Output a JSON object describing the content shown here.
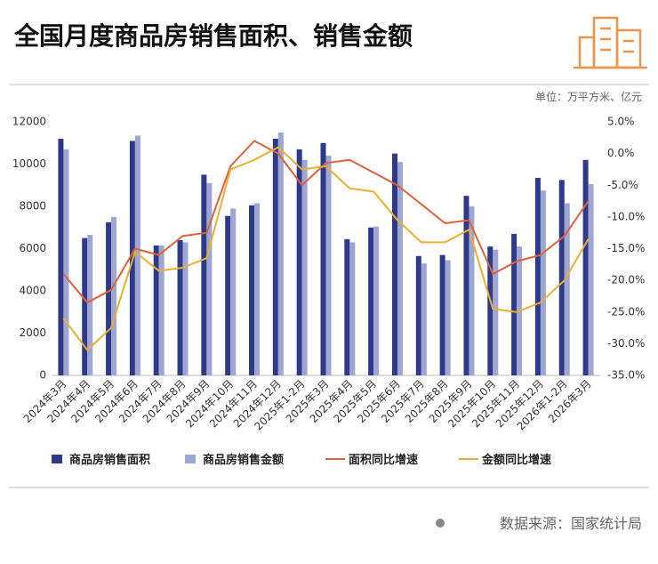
{
  "chart_data": {
    "type": "bar-line",
    "title": "全国月度商品房销售面积、销售金额",
    "unit": "单位：万平方米、亿元",
    "source": "数据来源：国家统计局",
    "categories": [
      "2024年3月",
      "2024年4月",
      "2024年5月",
      "2024年6月",
      "2024年7月",
      "2024年8月",
      "2024年9月",
      "2024年10月",
      "2024年11月",
      "2024年12月",
      "2025年1-2月",
      "2025年3月",
      "2025年4月",
      "2025年5月",
      "2025年6月",
      "2025年7月",
      "2025年8月",
      "2025年9月",
      "2025年10月",
      "2025年11月",
      "2025年12月",
      "2026年1-2月",
      "2026年3月"
    ],
    "series": [
      {
        "name": "商品房销售面积",
        "kind": "bar",
        "color": "#2e3a87",
        "values": [
          11200,
          6500,
          7250,
          11100,
          6150,
          6400,
          9500,
          7550,
          8050,
          11200,
          10700,
          11000,
          6450,
          7000,
          10500,
          5650,
          5700,
          8500,
          6100,
          6700,
          9350,
          9250,
          10200
        ]
      },
      {
        "name": "商品房销售金额",
        "kind": "bar",
        "color": "#9ea6d4",
        "values": [
          10700,
          6650,
          7500,
          11350,
          6150,
          6300,
          9100,
          7900,
          8150,
          11500,
          10200,
          10400,
          6300,
          7050,
          10100,
          5300,
          5450,
          8000,
          5950,
          6100,
          8750,
          8150,
          9050
        ]
      },
      {
        "name": "面积同比增速",
        "kind": "line",
        "axis": "y2",
        "color": "#e0603a",
        "values": [
          -19,
          -23.5,
          -21.5,
          -15,
          -16,
          -13,
          -12.5,
          -2,
          2,
          0,
          -5,
          -1.5,
          -1,
          -3,
          -5,
          -8,
          -11,
          -10.5,
          -19,
          -17,
          -16,
          -13,
          -7.5
        ]
      },
      {
        "name": "金额同比增速",
        "kind": "line",
        "axis": "y2",
        "color": "#e8b030",
        "values": [
          -26,
          -31,
          -27.5,
          -15.5,
          -18.5,
          -18,
          -16.5,
          -2.5,
          -1,
          1,
          -2.5,
          -2,
          -5.5,
          -6,
          -10.5,
          -14,
          -14,
          -12,
          -24.5,
          -25,
          -23.5,
          -20,
          -13.5
        ]
      }
    ],
    "ylim": [
      0,
      12000
    ],
    "yticks": [
      0,
      2000,
      4000,
      6000,
      8000,
      10000,
      12000
    ],
    "y2lim": [
      -35,
      5
    ],
    "y2ticks": [
      {
        "value": 5,
        "label": "5.0%"
      },
      {
        "value": 0,
        "label": "0.0%"
      },
      {
        "value": -5,
        "label": "-5.0%"
      },
      {
        "value": -10,
        "label": "-10.0%"
      },
      {
        "value": -15,
        "label": "-15.0%"
      },
      {
        "value": -20,
        "label": "-20.0%"
      },
      {
        "value": -25,
        "label": "-25.0%"
      },
      {
        "value": -30,
        "label": "-30.0%"
      },
      {
        "value": -35,
        "label": "-35.0%"
      }
    ],
    "legend": "bottom"
  }
}
